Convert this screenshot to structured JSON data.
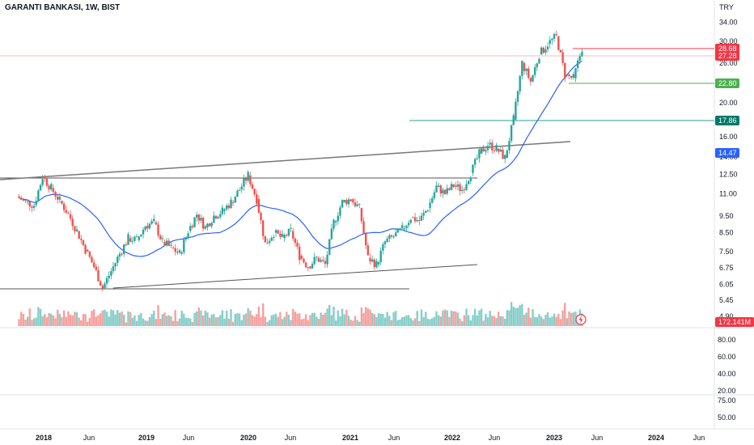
{
  "header": {
    "title": "GARANTI BANKASI, 1W, BIST",
    "currency": "TRY"
  },
  "chart_data": {
    "type": "candlestick",
    "title": "GARANTI BANKASI, 1W, BIST",
    "price_axis": {
      "ticks": [
        "34.00",
        "30.00",
        "26.00",
        "20.00",
        "16.00",
        "14.00",
        "12.50",
        "11.00",
        "9.50",
        "8.50",
        "7.50",
        "6.75",
        "6.05",
        "5.45",
        "4.90"
      ],
      "scale": "log"
    },
    "volume_axis": {
      "ticks": [
        "80.00",
        "60.00",
        "40.00",
        "20.00"
      ]
    },
    "oscillator_axis": {
      "ticks": [
        "75.00",
        "50.00"
      ]
    },
    "time_axis": {
      "labels": [
        {
          "text": "2018",
          "bold": true
        },
        {
          "text": "Jun",
          "bold": false
        },
        {
          "text": "2019",
          "bold": true
        },
        {
          "text": "Jun",
          "bold": false
        },
        {
          "text": "2020",
          "bold": true
        },
        {
          "text": "Jun",
          "bold": false
        },
        {
          "text": "2021",
          "bold": true
        },
        {
          "text": "Jun",
          "bold": false
        },
        {
          "text": "2022",
          "bold": true
        },
        {
          "text": "Jun",
          "bold": false
        },
        {
          "text": "2023",
          "bold": true
        },
        {
          "text": "Jun",
          "bold": false
        },
        {
          "text": "2024",
          "bold": true
        },
        {
          "text": "Jun",
          "bold": false
        }
      ]
    },
    "price_labels": [
      {
        "value": "28.68",
        "color": "#f23645"
      },
      {
        "value": "27.28",
        "color": "#f23645"
      },
      {
        "value": "22.80",
        "color": "#4caf50"
      },
      {
        "value": "17.86",
        "color": "#00796b"
      },
      {
        "value": "14.47",
        "color": "#2962ff"
      },
      {
        "value": "172.141M",
        "color": "#f23645"
      }
    ],
    "colors": {
      "up": "#26a69a",
      "down": "#ef5350",
      "ma": "#2962ff"
    },
    "series": [
      {
        "date": "2017-10",
        "close": 10.8
      },
      {
        "date": "2017-11",
        "close": 10.4
      },
      {
        "date": "2017-12",
        "close": 10.2
      },
      {
        "date": "2018-01",
        "close": 12.3
      },
      {
        "date": "2018-02",
        "close": 11.4
      },
      {
        "date": "2018-03",
        "close": 10.5
      },
      {
        "date": "2018-04",
        "close": 9.6
      },
      {
        "date": "2018-05",
        "close": 8.6
      },
      {
        "date": "2018-06",
        "close": 7.6
      },
      {
        "date": "2018-07",
        "close": 6.8
      },
      {
        "date": "2018-08",
        "close": 5.9
      },
      {
        "date": "2018-09",
        "close": 6.6
      },
      {
        "date": "2018-10",
        "close": 7.4
      },
      {
        "date": "2018-11",
        "close": 8.2
      },
      {
        "date": "2018-12",
        "close": 8.1
      },
      {
        "date": "2019-01",
        "close": 8.9
      },
      {
        "date": "2019-02",
        "close": 9.1
      },
      {
        "date": "2019-03",
        "close": 8.0
      },
      {
        "date": "2019-04",
        "close": 7.7
      },
      {
        "date": "2019-05",
        "close": 7.4
      },
      {
        "date": "2019-06",
        "close": 8.6
      },
      {
        "date": "2019-07",
        "close": 9.6
      },
      {
        "date": "2019-08",
        "close": 8.8
      },
      {
        "date": "2019-09",
        "close": 9.5
      },
      {
        "date": "2019-10",
        "close": 9.8
      },
      {
        "date": "2019-11",
        "close": 10.4
      },
      {
        "date": "2019-12",
        "close": 11.3
      },
      {
        "date": "2020-01",
        "close": 12.4
      },
      {
        "date": "2020-02",
        "close": 10.6
      },
      {
        "date": "2020-03",
        "close": 7.9
      },
      {
        "date": "2020-04",
        "close": 8.5
      },
      {
        "date": "2020-05",
        "close": 8.2
      },
      {
        "date": "2020-06",
        "close": 8.6
      },
      {
        "date": "2020-07",
        "close": 7.3
      },
      {
        "date": "2020-08",
        "close": 6.8
      },
      {
        "date": "2020-09",
        "close": 7.2
      },
      {
        "date": "2020-10",
        "close": 6.9
      },
      {
        "date": "2020-11",
        "close": 9.1
      },
      {
        "date": "2020-12",
        "close": 10.4
      },
      {
        "date": "2021-01",
        "close": 10.6
      },
      {
        "date": "2021-02",
        "close": 10.0
      },
      {
        "date": "2021-03",
        "close": 7.2
      },
      {
        "date": "2021-04",
        "close": 6.9
      },
      {
        "date": "2021-05",
        "close": 8.0
      },
      {
        "date": "2021-06",
        "close": 8.3
      },
      {
        "date": "2021-07",
        "close": 8.7
      },
      {
        "date": "2021-08",
        "close": 9.4
      },
      {
        "date": "2021-09",
        "close": 9.2
      },
      {
        "date": "2021-10",
        "close": 10.0
      },
      {
        "date": "2021-11",
        "close": 11.5
      },
      {
        "date": "2021-12",
        "close": 11.0
      },
      {
        "date": "2022-01",
        "close": 11.6
      },
      {
        "date": "2022-02",
        "close": 11.3
      },
      {
        "date": "2022-03",
        "close": 12.6
      },
      {
        "date": "2022-04",
        "close": 14.3
      },
      {
        "date": "2022-05",
        "close": 15.2
      },
      {
        "date": "2022-06",
        "close": 14.8
      },
      {
        "date": "2022-07",
        "close": 13.9
      },
      {
        "date": "2022-08",
        "close": 17.9
      },
      {
        "date": "2022-09",
        "close": 26.0
      },
      {
        "date": "2022-10",
        "close": 23.0
      },
      {
        "date": "2022-11",
        "close": 27.5
      },
      {
        "date": "2022-12",
        "close": 29.5
      },
      {
        "date": "2023-01",
        "close": 31.0
      },
      {
        "date": "2023-02",
        "close": 24.0
      },
      {
        "date": "2023-03",
        "close": 23.5
      },
      {
        "date": "2023-04",
        "close": 28.68
      }
    ]
  }
}
